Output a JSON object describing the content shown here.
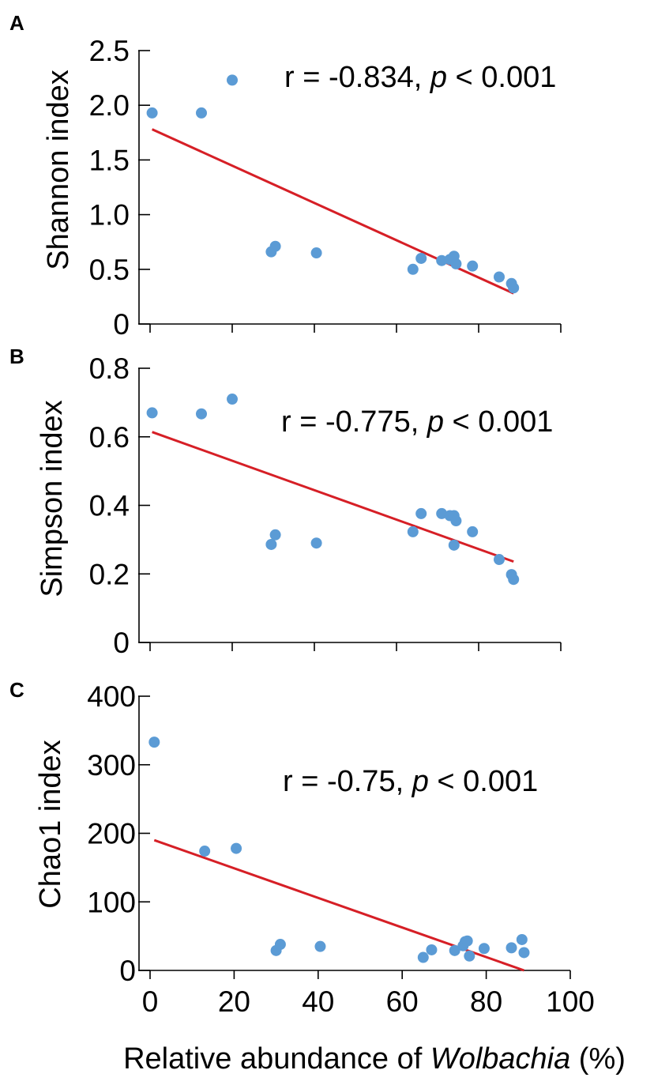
{
  "xlabel_parts": {
    "prefix": "Relative abundance of ",
    "italic": "Wolbachia",
    "suffix": " (%)"
  },
  "chart_data": [
    {
      "type": "scatter",
      "panel": "A",
      "ylabel": "Shannon index",
      "xlim": [
        0,
        100
      ],
      "ylim": [
        0,
        2.5
      ],
      "yticks": [
        0,
        0.5,
        1.0,
        1.5,
        2.0,
        2.5
      ],
      "ytick_labels": [
        "0",
        "0.5",
        "1.0",
        "1.5",
        "2.0",
        "2.5"
      ],
      "xticks": [
        0,
        20,
        40,
        60,
        80,
        100
      ],
      "xtick_labels": [],
      "annotation": {
        "r": "r = -0.834, ",
        "p_symbol": "p",
        "p_rest": " < 0.001"
      },
      "points": [
        [
          0.5,
          1.93
        ],
        [
          12.5,
          1.93
        ],
        [
          20,
          2.23
        ],
        [
          29.5,
          0.66
        ],
        [
          30.5,
          0.71
        ],
        [
          40.5,
          0.65
        ],
        [
          64,
          0.5
        ],
        [
          66,
          0.6
        ],
        [
          71,
          0.58
        ],
        [
          73,
          0.59
        ],
        [
          74,
          0.62
        ],
        [
          74.5,
          0.55
        ],
        [
          78.5,
          0.53
        ],
        [
          85,
          0.43
        ],
        [
          88,
          0.37
        ],
        [
          88.5,
          0.33
        ]
      ],
      "fit": {
        "x": [
          0.5,
          88.5
        ],
        "y": [
          1.78,
          0.28
        ]
      }
    },
    {
      "type": "scatter",
      "panel": "B",
      "ylabel": "Simpson index",
      "xlim": [
        0,
        100
      ],
      "ylim": [
        0,
        0.8
      ],
      "yticks": [
        0,
        0.2,
        0.4,
        0.6,
        0.8
      ],
      "ytick_labels": [
        "0",
        "0.2",
        "0.4",
        "0.6",
        "0.8"
      ],
      "xticks": [
        0,
        20,
        40,
        60,
        80,
        100
      ],
      "xtick_labels": [],
      "annotation": {
        "r": "r = -0.775, ",
        "p_symbol": "p",
        "p_rest": " < 0.001"
      },
      "points": [
        [
          0.5,
          0.67
        ],
        [
          12.5,
          0.667
        ],
        [
          20,
          0.71
        ],
        [
          29.5,
          0.286
        ],
        [
          30.5,
          0.314
        ],
        [
          40.5,
          0.29
        ],
        [
          64,
          0.323
        ],
        [
          66,
          0.376
        ],
        [
          71,
          0.376
        ],
        [
          73,
          0.37
        ],
        [
          74,
          0.37
        ],
        [
          74.5,
          0.355
        ],
        [
          74,
          0.284
        ],
        [
          78.5,
          0.323
        ],
        [
          85,
          0.242
        ],
        [
          88,
          0.198
        ],
        [
          88.5,
          0.184
        ]
      ],
      "fit": {
        "x": [
          0.5,
          88.5
        ],
        "y": [
          0.614,
          0.236
        ]
      }
    },
    {
      "type": "scatter",
      "panel": "C",
      "ylabel": "Chao1 index",
      "xlim": [
        0,
        100
      ],
      "ylim": [
        0,
        400
      ],
      "yticks": [
        0,
        100,
        200,
        300,
        400
      ],
      "ytick_labels": [
        "0",
        "100",
        "200",
        "300",
        "400"
      ],
      "xticks": [
        0,
        20,
        40,
        60,
        80,
        100
      ],
      "xtick_labels": [
        "0",
        "20",
        "40",
        "60",
        "80",
        "100"
      ],
      "annotation": {
        "r": "r = -0.75, ",
        "p_symbol": "p",
        "p_rest": " < 0.001"
      },
      "points": [
        [
          1,
          333
        ],
        [
          13,
          174
        ],
        [
          20.5,
          178
        ],
        [
          30,
          29
        ],
        [
          31,
          38
        ],
        [
          40.5,
          35
        ],
        [
          65,
          19
        ],
        [
          67,
          30
        ],
        [
          72.5,
          29
        ],
        [
          74.5,
          36
        ],
        [
          75,
          42
        ],
        [
          75.5,
          43
        ],
        [
          76,
          21
        ],
        [
          79.5,
          32
        ],
        [
          86,
          33
        ],
        [
          88.5,
          45
        ],
        [
          89,
          26
        ]
      ],
      "fit": {
        "x": [
          1,
          89
        ],
        "y": [
          190,
          0
        ]
      }
    }
  ]
}
